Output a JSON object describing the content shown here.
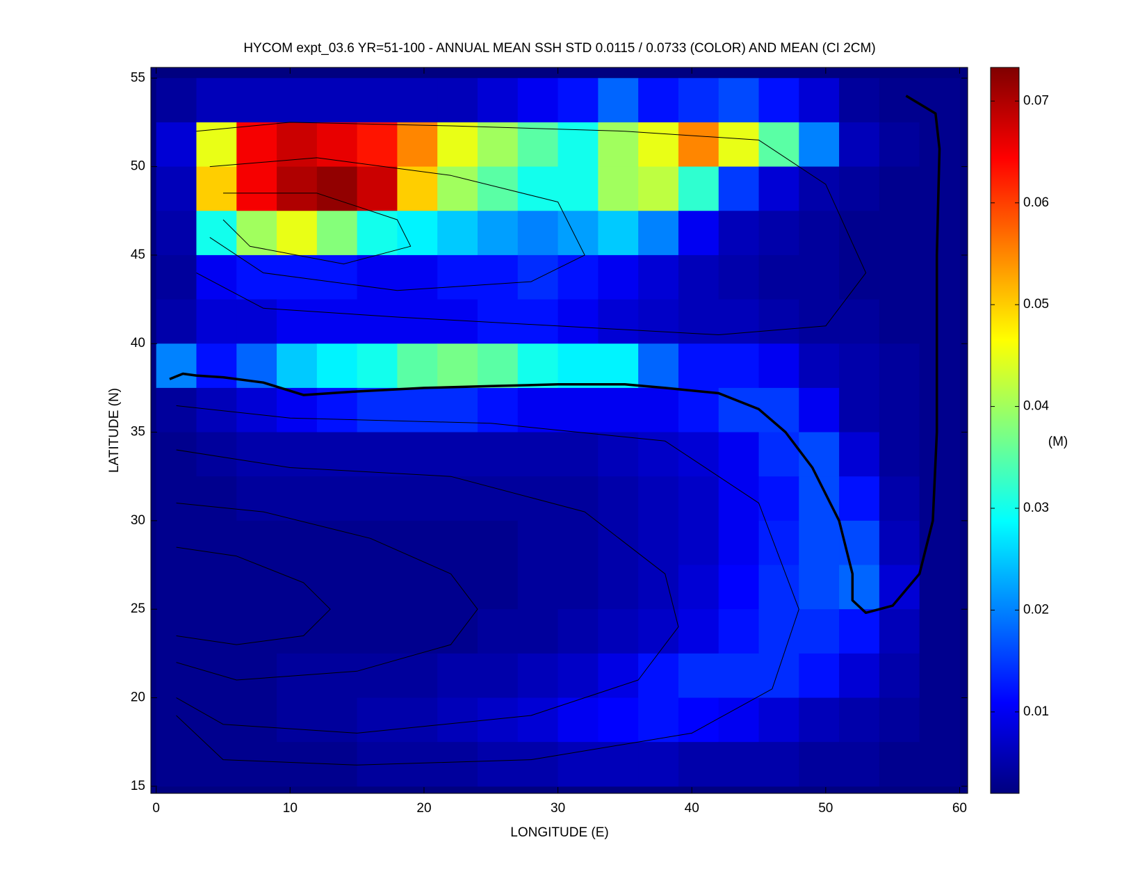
{
  "chart_data": {
    "type": "heatmap",
    "title": "HYCOM expt_03.6 YR=51-100 - ANNUAL MEAN SSH STD 0.0115 / 0.0733 (COLOR) AND MEAN (CI 2CM)",
    "x_label": "LONGITUDE (E)",
    "y_label": "LATITUDE (N)",
    "colorbar_label": "(M)",
    "colormap": "jet",
    "xlim": [
      -0.4,
      60.6
    ],
    "ylim": [
      14.6,
      55.6
    ],
    "xticks": [
      0,
      10,
      20,
      30,
      40,
      50,
      60
    ],
    "yticks": [
      15,
      20,
      25,
      30,
      35,
      40,
      45,
      50,
      55
    ],
    "clim": [
      0.002,
      0.0733
    ],
    "cticks": [
      0.01,
      0.02,
      0.03,
      0.04,
      0.05,
      0.06,
      0.07
    ],
    "lon_edges": [
      0,
      3,
      6,
      9,
      12,
      15,
      18,
      21,
      24,
      27,
      30,
      33,
      36,
      39,
      42,
      45,
      48,
      51,
      54,
      57,
      60
    ],
    "lat_edges": [
      55,
      52.5,
      50,
      47.5,
      45,
      42.5,
      40,
      37.5,
      35,
      32.5,
      30,
      27.5,
      25,
      22.5,
      20,
      17.5,
      15
    ],
    "grid": [
      [
        0.004,
        0.006,
        0.006,
        0.006,
        0.006,
        0.006,
        0.006,
        0.006,
        0.008,
        0.01,
        0.012,
        0.018,
        0.012,
        0.014,
        0.016,
        0.012,
        0.008,
        0.004,
        0.003,
        0.003
      ],
      [
        0.008,
        0.045,
        0.065,
        0.068,
        0.066,
        0.063,
        0.055,
        0.045,
        0.04,
        0.035,
        0.03,
        0.04,
        0.045,
        0.055,
        0.045,
        0.035,
        0.02,
        0.006,
        0.004,
        0.003
      ],
      [
        0.006,
        0.05,
        0.065,
        0.07,
        0.072,
        0.068,
        0.05,
        0.04,
        0.035,
        0.03,
        0.03,
        0.04,
        0.042,
        0.032,
        0.015,
        0.008,
        0.005,
        0.004,
        0.003,
        0.003
      ],
      [
        0.005,
        0.03,
        0.04,
        0.045,
        0.038,
        0.03,
        0.028,
        0.025,
        0.022,
        0.02,
        0.022,
        0.025,
        0.02,
        0.01,
        0.006,
        0.005,
        0.004,
        0.003,
        0.003,
        0.003
      ],
      [
        0.004,
        0.01,
        0.012,
        0.012,
        0.012,
        0.01,
        0.01,
        0.012,
        0.012,
        0.014,
        0.012,
        0.01,
        0.008,
        0.006,
        0.005,
        0.004,
        0.004,
        0.003,
        0.003,
        0.003
      ],
      [
        0.005,
        0.008,
        0.008,
        0.01,
        0.01,
        0.01,
        0.01,
        0.01,
        0.012,
        0.012,
        0.01,
        0.008,
        0.007,
        0.006,
        0.006,
        0.005,
        0.004,
        0.004,
        0.003,
        0.003
      ],
      [
        0.02,
        0.012,
        0.018,
        0.025,
        0.028,
        0.03,
        0.035,
        0.037,
        0.035,
        0.03,
        0.028,
        0.028,
        0.018,
        0.012,
        0.012,
        0.01,
        0.006,
        0.005,
        0.004,
        0.003
      ],
      [
        0.004,
        0.006,
        0.008,
        0.01,
        0.012,
        0.014,
        0.014,
        0.014,
        0.012,
        0.01,
        0.01,
        0.01,
        0.01,
        0.012,
        0.015,
        0.015,
        0.01,
        0.005,
        0.004,
        0.003
      ],
      [
        0.003,
        0.004,
        0.005,
        0.005,
        0.005,
        0.005,
        0.005,
        0.005,
        0.005,
        0.005,
        0.005,
        0.006,
        0.007,
        0.008,
        0.01,
        0.014,
        0.016,
        0.008,
        0.004,
        0.003
      ],
      [
        0.003,
        0.003,
        0.004,
        0.004,
        0.004,
        0.004,
        0.004,
        0.004,
        0.004,
        0.004,
        0.004,
        0.005,
        0.006,
        0.007,
        0.01,
        0.012,
        0.016,
        0.012,
        0.005,
        0.003
      ],
      [
        0.003,
        0.003,
        0.003,
        0.003,
        0.003,
        0.003,
        0.003,
        0.003,
        0.003,
        0.004,
        0.004,
        0.005,
        0.006,
        0.007,
        0.01,
        0.013,
        0.016,
        0.016,
        0.006,
        0.003
      ],
      [
        0.003,
        0.003,
        0.003,
        0.003,
        0.003,
        0.003,
        0.003,
        0.003,
        0.003,
        0.004,
        0.004,
        0.005,
        0.006,
        0.008,
        0.011,
        0.014,
        0.016,
        0.018,
        0.008,
        0.003
      ],
      [
        0.003,
        0.003,
        0.003,
        0.003,
        0.003,
        0.003,
        0.003,
        0.003,
        0.004,
        0.004,
        0.005,
        0.006,
        0.007,
        0.009,
        0.012,
        0.014,
        0.014,
        0.012,
        0.006,
        0.003
      ],
      [
        0.003,
        0.003,
        0.003,
        0.004,
        0.004,
        0.004,
        0.004,
        0.005,
        0.005,
        0.006,
        0.007,
        0.009,
        0.012,
        0.014,
        0.014,
        0.014,
        0.012,
        0.008,
        0.005,
        0.003
      ],
      [
        0.003,
        0.003,
        0.003,
        0.004,
        0.004,
        0.005,
        0.005,
        0.006,
        0.007,
        0.008,
        0.01,
        0.011,
        0.012,
        0.011,
        0.01,
        0.008,
        0.006,
        0.005,
        0.004,
        0.003
      ],
      [
        0.003,
        0.003,
        0.003,
        0.003,
        0.003,
        0.004,
        0.004,
        0.004,
        0.005,
        0.005,
        0.006,
        0.006,
        0.006,
        0.005,
        0.005,
        0.005,
        0.004,
        0.004,
        0.003,
        0.003
      ]
    ],
    "zero_contour": {
      "lon": [
        1,
        2,
        3,
        5,
        8,
        11,
        15,
        20,
        25,
        30,
        35,
        38,
        42,
        45,
        47,
        49,
        51,
        52,
        52,
        53,
        55,
        57,
        58,
        58.3,
        58.3,
        58.5,
        58.2,
        56
      ],
      "lat": [
        38,
        38.3,
        38.2,
        38.1,
        37.8,
        37.1,
        37.3,
        37.5,
        37.6,
        37.7,
        37.7,
        37.5,
        37.2,
        36.3,
        35,
        33,
        30,
        27,
        25.5,
        24.8,
        25.2,
        27,
        30,
        35,
        45,
        51,
        53,
        54
      ]
    },
    "contours": [
      {
        "lon": [
          1.5,
          10,
          25,
          38,
          45,
          48,
          46,
          40,
          28,
          15,
          5,
          1.5
        ],
        "lat": [
          36.5,
          35.8,
          35.5,
          34.5,
          31,
          25,
          20.5,
          18,
          16.5,
          16.2,
          16.5,
          19
        ]
      },
      {
        "lon": [
          1.5,
          10,
          22,
          32,
          38,
          39,
          36,
          28,
          15,
          5,
          1.5
        ],
        "lat": [
          34,
          33,
          32.5,
          30.5,
          27,
          24,
          21,
          19,
          18,
          18.5,
          20
        ]
      },
      {
        "lon": [
          1.5,
          8,
          16,
          22,
          24,
          22,
          15,
          6,
          1.5
        ],
        "lat": [
          31,
          30.5,
          29,
          27,
          25,
          23,
          21.5,
          21,
          22
        ]
      },
      {
        "lon": [
          1.5,
          6,
          11,
          13,
          11,
          6,
          1.5
        ],
        "lat": [
          28.5,
          28,
          26.5,
          25,
          23.5,
          23,
          23.5
        ]
      },
      {
        "lon": [
          3,
          10,
          22,
          35,
          45,
          50,
          53,
          50,
          42,
          30,
          18,
          8,
          3
        ],
        "lat": [
          52,
          52.5,
          52.3,
          52,
          51.5,
          49,
          44,
          41,
          40.5,
          41,
          41.5,
          42,
          44
        ]
      },
      {
        "lon": [
          4,
          12,
          22,
          30,
          32,
          28,
          18,
          8,
          4
        ],
        "lat": [
          50,
          50.5,
          49.5,
          48,
          45,
          43.5,
          43,
          44,
          46
        ]
      },
      {
        "lon": [
          5,
          12,
          18,
          19,
          14,
          7,
          5
        ],
        "lat": [
          48.5,
          48.5,
          47,
          45.5,
          44.5,
          45.5,
          47
        ]
      }
    ]
  }
}
